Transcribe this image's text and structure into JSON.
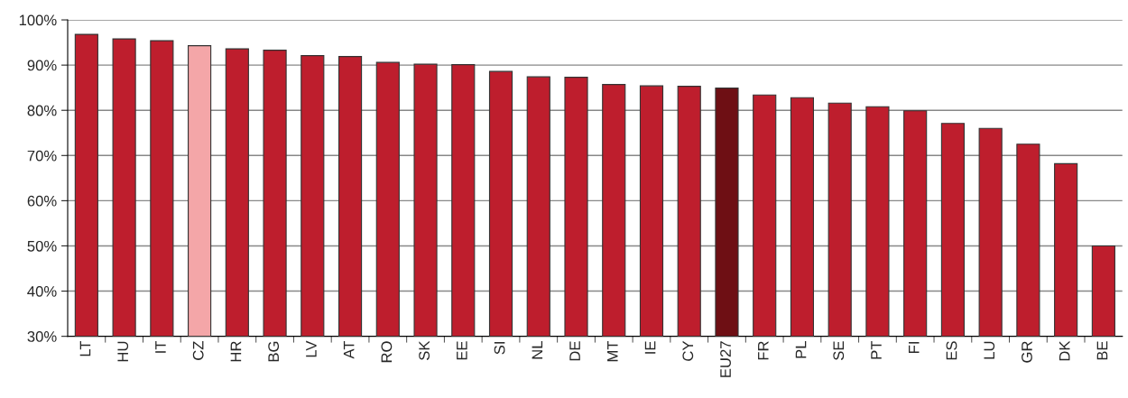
{
  "chart_data": {
    "type": "bar",
    "categories": [
      "LT",
      "HU",
      "IT",
      "CZ",
      "HR",
      "BG",
      "LV",
      "AT",
      "RO",
      "SK",
      "EE",
      "SI",
      "NL",
      "DE",
      "MT",
      "IE",
      "CY",
      "EU27",
      "FR",
      "PL",
      "SE",
      "PT",
      "FI",
      "ES",
      "LU",
      "GR",
      "DK",
      "BE"
    ],
    "values": [
      96.8,
      95.8,
      95.4,
      94.3,
      93.6,
      93.3,
      92.1,
      91.9,
      90.6,
      90.2,
      90.1,
      88.6,
      87.4,
      87.3,
      85.7,
      85.4,
      85.3,
      84.9,
      83.4,
      82.8,
      81.6,
      80.8,
      79.9,
      77.1,
      76.0,
      72.5,
      68.2,
      50.0
    ],
    "colors": [
      "#be1e2d",
      "#be1e2d",
      "#be1e2d",
      "#f4a6a8",
      "#be1e2d",
      "#be1e2d",
      "#be1e2d",
      "#be1e2d",
      "#be1e2d",
      "#be1e2d",
      "#be1e2d",
      "#be1e2d",
      "#be1e2d",
      "#be1e2d",
      "#be1e2d",
      "#be1e2d",
      "#be1e2d",
      "#6e0f14",
      "#be1e2d",
      "#be1e2d",
      "#be1e2d",
      "#be1e2d",
      "#be1e2d",
      "#be1e2d",
      "#be1e2d",
      "#be1e2d",
      "#be1e2d",
      "#be1e2d"
    ],
    "ylim": [
      30,
      100
    ],
    "yticks": [
      {
        "value": 30,
        "label": "30%"
      },
      {
        "value": 40,
        "label": "40%"
      },
      {
        "value": 50,
        "label": "50%"
      },
      {
        "value": 60,
        "label": "60%"
      },
      {
        "value": 70,
        "label": "70%"
      },
      {
        "value": 80,
        "label": "80%"
      },
      {
        "value": 90,
        "label": "90%"
      },
      {
        "value": 100,
        "label": "100%"
      }
    ],
    "grid": "y"
  }
}
